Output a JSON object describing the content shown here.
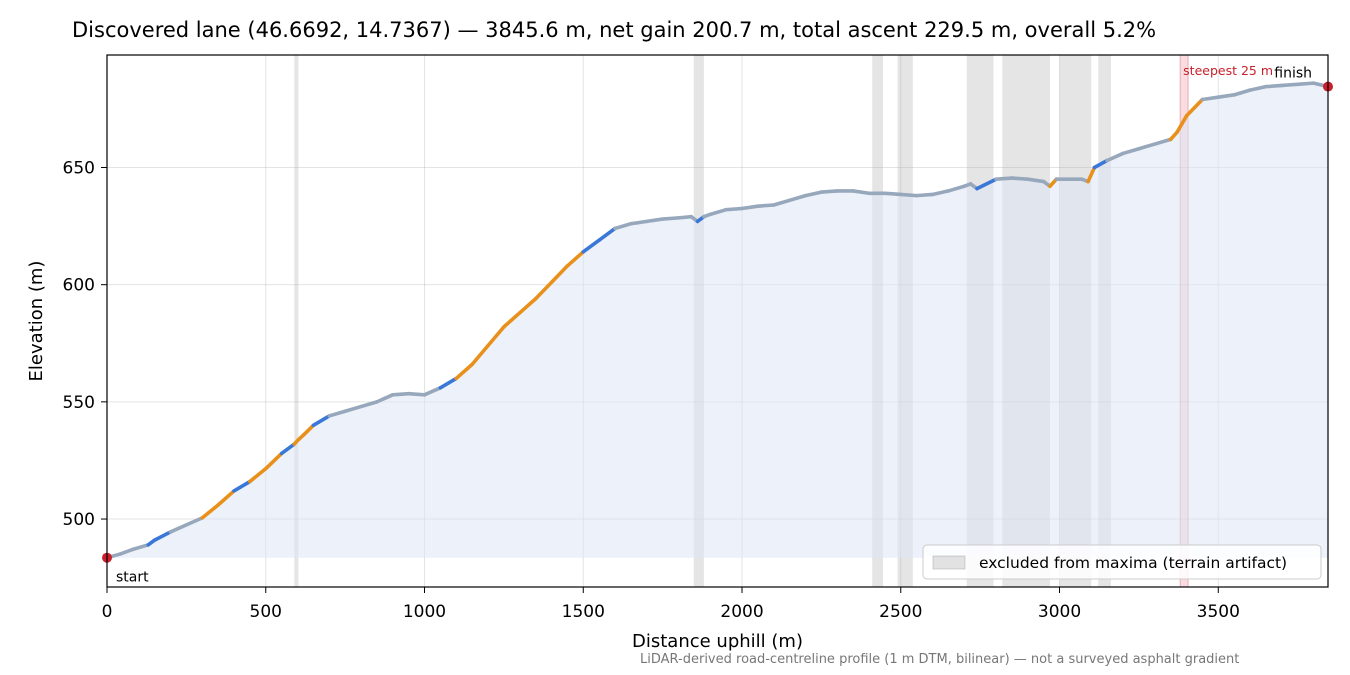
{
  "chart_data": {
    "type": "area",
    "title": "Discovered lane (46.6692, 14.7367) — 3845.6 m, net gain 200.7 m, total ascent 229.5 m, overall 5.2%",
    "xlabel": "Distance uphill (m)",
    "ylabel": "Elevation (m)",
    "xlim": [
      0,
      3845.6
    ],
    "ylim": [
      471,
      698
    ],
    "xticks": [
      0,
      500,
      1000,
      1500,
      2000,
      2500,
      3000,
      3500
    ],
    "yticks": [
      500,
      550,
      600,
      650
    ],
    "grid": true,
    "legend": {
      "location": "lower-right",
      "label": "excluded from maxima (terrain artifact)"
    },
    "excluded_ranges": [
      [
        590,
        603
      ],
      [
        1848,
        1880
      ],
      [
        2410,
        2444
      ],
      [
        2490,
        2538
      ],
      [
        2708,
        2792
      ],
      [
        2820,
        2970
      ],
      [
        3000,
        3100
      ],
      [
        3122,
        3162
      ]
    ],
    "steepest": {
      "label": "steepest 25 m",
      "range": [
        3380,
        3405
      ]
    },
    "annotations": {
      "start": "start",
      "finish": "finish"
    },
    "footnote": "LiDAR-derived road-centreline profile (1 m DTM, bilinear) — not a surveyed asphalt gradient",
    "series": [
      {
        "x": [
          0,
          40,
          80,
          130,
          150,
          200,
          250,
          300,
          350,
          400,
          450,
          500,
          550,
          590,
          600,
          620,
          650,
          700,
          750,
          800,
          850,
          900,
          950,
          1000,
          1050,
          1100,
          1150,
          1200,
          1250,
          1300,
          1350,
          1400,
          1450,
          1500,
          1550,
          1600,
          1650,
          1700,
          1750,
          1800,
          1840,
          1860,
          1880,
          1900,
          1950,
          2000,
          2050,
          2100,
          2150,
          2200,
          2250,
          2300,
          2350,
          2400,
          2450,
          2500,
          2550,
          2600,
          2650,
          2700,
          2720,
          2740,
          2800,
          2850,
          2900,
          2950,
          2970,
          2990,
          3050,
          3070,
          3090,
          3110,
          3150,
          3200,
          3250,
          3300,
          3350,
          3370,
          3400,
          3450,
          3500,
          3550,
          3600,
          3650,
          3700,
          3750,
          3800,
          3845.6
        ],
        "y": [
          483.5,
          485,
          487,
          489,
          491,
          494.5,
          497.5,
          500.5,
          506,
          512,
          516,
          521.5,
          528,
          532,
          533.5,
          536,
          540,
          544,
          546,
          548,
          550,
          553,
          553.5,
          553,
          556,
          560,
          566,
          574,
          582,
          588,
          594,
          601,
          608,
          614,
          619,
          624,
          626,
          627,
          628,
          628.5,
          629,
          627,
          629,
          630,
          632,
          632.5,
          633.5,
          634,
          636,
          638,
          639.5,
          640,
          640,
          639,
          639,
          638.5,
          638,
          638.5,
          640,
          642,
          643,
          641,
          645,
          645.5,
          645,
          644,
          642,
          645,
          645,
          645,
          644,
          650,
          653,
          656,
          658,
          660,
          662,
          665,
          672,
          679,
          680,
          681,
          683,
          684.5,
          685,
          685.5,
          686,
          684.5
        ]
      }
    ]
  }
}
